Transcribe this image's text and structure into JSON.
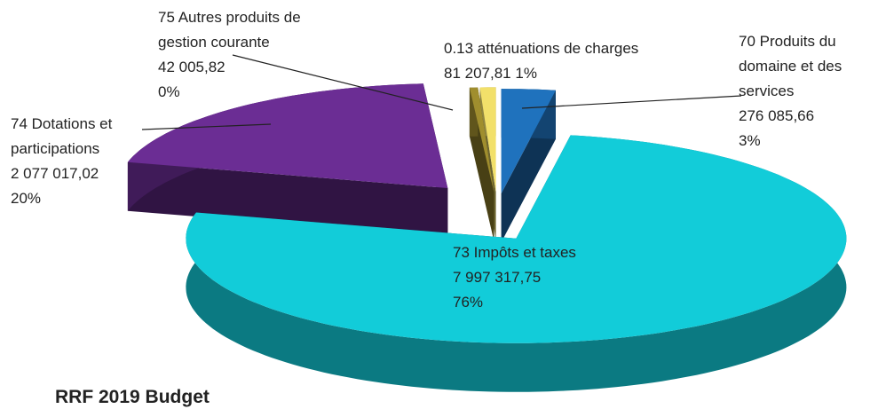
{
  "chart_data": {
    "type": "pie",
    "title": "RRF 2019 Budget",
    "categories": [
      "70 Produits du domaine et des services",
      "73 Impôts et taxes",
      "74 Dotations et participations",
      "75 Autres produits de gestion courante",
      "0.13 atténuations de charges"
    ],
    "values": [
      276085.66,
      7997317.75,
      2077017.02,
      42005.82,
      81207.81
    ],
    "value_labels": [
      "276 085,66",
      "7 997 317,75",
      "2 077 017,02",
      "42 005,82",
      "81 207,81"
    ],
    "percentages": [
      3,
      76,
      20,
      0,
      1
    ],
    "percent_labels": [
      "3%",
      "76%",
      "20%",
      "0%",
      "1%"
    ],
    "colors": [
      "#1f72bd",
      "#12ccd9",
      "#6b2d94",
      "#a08e2e",
      "#f2e06a"
    ]
  }
}
